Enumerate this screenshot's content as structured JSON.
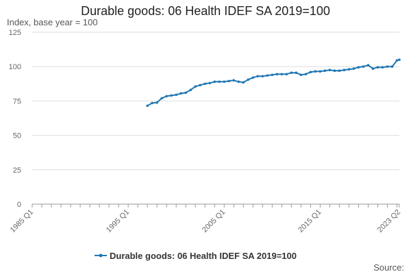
{
  "title": "Durable goods: 06 Health IDEF SA 2019=100",
  "y_caption": "Index, base year = 100",
  "source_label": "Source:",
  "colors": {
    "series": "#1f77b4",
    "grid": "#dddddd",
    "axis": "#999999"
  },
  "chart_data": {
    "type": "line",
    "title": "Durable goods: 06 Health IDEF SA 2019=100",
    "ylabel": "Index, base year = 100",
    "xlabel": "",
    "ylim": [
      0,
      125
    ],
    "y_ticks": [
      0,
      25,
      50,
      75,
      100,
      125
    ],
    "x_range": [
      "1985 Q1",
      "2023 Q2"
    ],
    "x_ticks": [
      "1985 Q1",
      "1995 Q1",
      "2005 Q1",
      "2015 Q1",
      "2023 Q2"
    ],
    "grid": true,
    "legend_position": "bottom",
    "series": [
      {
        "name": "Durable goods: 06 Health IDEF SA 2019=100",
        "x": [
          "1997 Q1",
          "1997 Q3",
          "1998 Q1",
          "1998 Q3",
          "1999 Q1",
          "1999 Q3",
          "2000 Q1",
          "2000 Q3",
          "2001 Q1",
          "2001 Q3",
          "2002 Q1",
          "2002 Q3",
          "2003 Q1",
          "2003 Q3",
          "2004 Q1",
          "2004 Q3",
          "2005 Q1",
          "2005 Q3",
          "2006 Q1",
          "2006 Q3",
          "2007 Q1",
          "2007 Q3",
          "2008 Q1",
          "2008 Q3",
          "2009 Q1",
          "2009 Q3",
          "2010 Q1",
          "2010 Q3",
          "2011 Q1",
          "2011 Q3",
          "2012 Q1",
          "2012 Q3",
          "2013 Q1",
          "2013 Q3",
          "2014 Q1",
          "2014 Q3",
          "2015 Q1",
          "2015 Q3",
          "2016 Q1",
          "2016 Q3",
          "2017 Q1",
          "2017 Q3",
          "2018 Q1",
          "2018 Q3",
          "2019 Q1",
          "2019 Q3",
          "2020 Q1",
          "2020 Q3",
          "2021 Q1",
          "2021 Q3",
          "2022 Q1",
          "2022 Q3",
          "2023 Q1",
          "2023 Q2"
        ],
        "values": [
          71.5,
          73.5,
          73.8,
          77,
          78.5,
          79,
          79.5,
          80.5,
          81,
          83,
          85.5,
          86.5,
          87.5,
          88,
          89,
          89,
          89,
          89.5,
          90,
          89,
          88.5,
          90.5,
          92,
          93,
          93,
          93.5,
          94,
          94.5,
          94.5,
          94.5,
          95.5,
          95.5,
          94,
          94.5,
          96,
          96.5,
          96.5,
          97,
          97.5,
          97,
          97,
          97.5,
          98,
          98.5,
          99.5,
          100,
          101,
          98.5,
          99.5,
          99.5,
          100,
          100,
          104.5,
          105
        ]
      }
    ]
  }
}
